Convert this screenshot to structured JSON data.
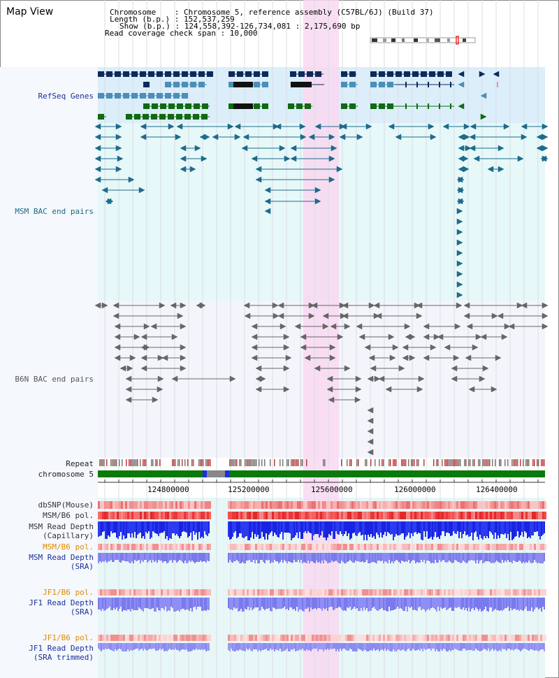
{
  "view_title": "Map View",
  "header": {
    "chromosome_line": "Chromosome    : Chromosome 5, reference assembly (C57BL/6J) (Build 37)",
    "length_line": "Length (b.p.) : 152,537,259",
    "show_line": "Show (b.p.) : 124,558,392-126,734,081 : 2,175,690 bp",
    "coverage_line": "Read coverage check span : 10,000"
  },
  "tracks": {
    "refseq": {
      "label": "RefSeq Genes",
      "color": "#1a2f9c"
    },
    "msm_bac": {
      "label": "MSM BAC end pairs",
      "color": "#1a6b85"
    },
    "b6n_bac": {
      "label": "B6N BAC end pairs",
      "color": "#555555"
    },
    "repeat": {
      "label": "Repeat"
    },
    "chromosome": {
      "label": "chromosome 5"
    },
    "dbsnp": {
      "label": "dbSNP(Mouse)",
      "color": "#333333"
    },
    "msm_b6_pol_1": {
      "label": "MSM/B6 pol.",
      "color": "#333333"
    },
    "msm_read_depth_cap": {
      "label_line1": "MSM Read Depth",
      "label_line2": "(Capillary)",
      "color": "#333333"
    },
    "msm_b6_pol_2": {
      "label": "MSM/B6 pol.",
      "color": "#e08a00"
    },
    "msm_read_depth_sra": {
      "label_line1": "MSM Read Depth",
      "label_line2": "(SRA)",
      "color": "#1a2f9c"
    },
    "jf1_b6_pol_1": {
      "label": "JF1/B6 pol.",
      "color": "#e08a00"
    },
    "jf1_read_depth_sra": {
      "label_line1": "JF1 Read Depth",
      "label_line2": "(SRA)",
      "color": "#1a2f9c"
    },
    "jf1_b6_pol_2": {
      "label": "JF1/B6 pol.",
      "color": "#e08a00"
    },
    "jf1_read_depth_trim": {
      "label_line1": "JF1 Read Depth",
      "label_line2": "(SRA trimmed)",
      "color": "#1a2f9c"
    }
  },
  "axis": {
    "ticks": [
      "124800000",
      "125200000",
      "125600000",
      "126000000",
      "126400000"
    ]
  },
  "highlight": {
    "start_bp": 125500000,
    "end_bp": 125590000
  },
  "colors": {
    "refseq_bg": "#dbeefa",
    "msm_bg": "#e6f8f8",
    "b6n_bg": "#f1f4fb",
    "highlight": "#f9d8f1",
    "navy": "#0d2a5a",
    "steel": "#4a8fb8",
    "green": "#0f6a12",
    "chrom_green": "#0a7a0a"
  }
}
